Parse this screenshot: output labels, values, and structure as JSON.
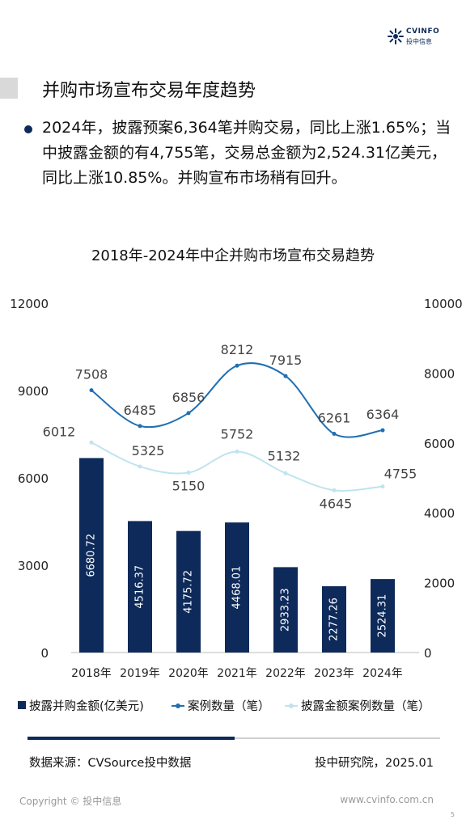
{
  "header": {
    "logo_en": "CVINFO",
    "logo_cn": "投中信息"
  },
  "page_title": "并购市场宣布交易年度趋势",
  "bullet": "2024年，披露预案6,364笔并购交易，同比上涨1.65%；当中披露金额的有4,755笔，交易总金额为2,524.31亿美元，同比上涨10.85%。并购宣布市场稍有回升。",
  "chart_data": {
    "type": "bar",
    "title": "2018年-2024年中企并购市场宣布交易趋势",
    "categories": [
      "2018年",
      "2019年",
      "2020年",
      "2021年",
      "2022年",
      "2023年",
      "2024年"
    ],
    "series": [
      {
        "name": "披露并购金额(亿美元)",
        "type": "bar",
        "axis": "left",
        "color": "#0d2a5a",
        "values": [
          6680.72,
          4516.37,
          4175.72,
          4468.01,
          2933.23,
          2277.26,
          2524.31
        ]
      },
      {
        "name": "案例数量（笔）",
        "type": "line",
        "axis": "right",
        "color": "#1f6fb3",
        "values": [
          7508,
          6485,
          6856,
          8212,
          7915,
          6261,
          6364
        ]
      },
      {
        "name": "披露金额案例数量（笔）",
        "type": "line",
        "axis": "right",
        "color": "#bfe4ef",
        "values": [
          6012,
          5325,
          5150,
          5752,
          5132,
          4645,
          4755
        ]
      }
    ],
    "left_axis": {
      "range": [
        0,
        12000
      ],
      "ticks": [
        "0",
        "3000",
        "6000",
        "9000",
        "12000"
      ]
    },
    "right_axis": {
      "range": [
        0,
        10000
      ],
      "ticks": [
        "0",
        "2000",
        "4000",
        "6000",
        "8000",
        "10000"
      ]
    },
    "legend": "bottom",
    "grid": false
  },
  "footer": {
    "source": "数据来源：CVSource投中数据",
    "institute": "投中研究院，2025.01",
    "copyright": "Copyright © 投中信息",
    "website": "www.cvinfo.com.cn",
    "page_number": "5"
  }
}
